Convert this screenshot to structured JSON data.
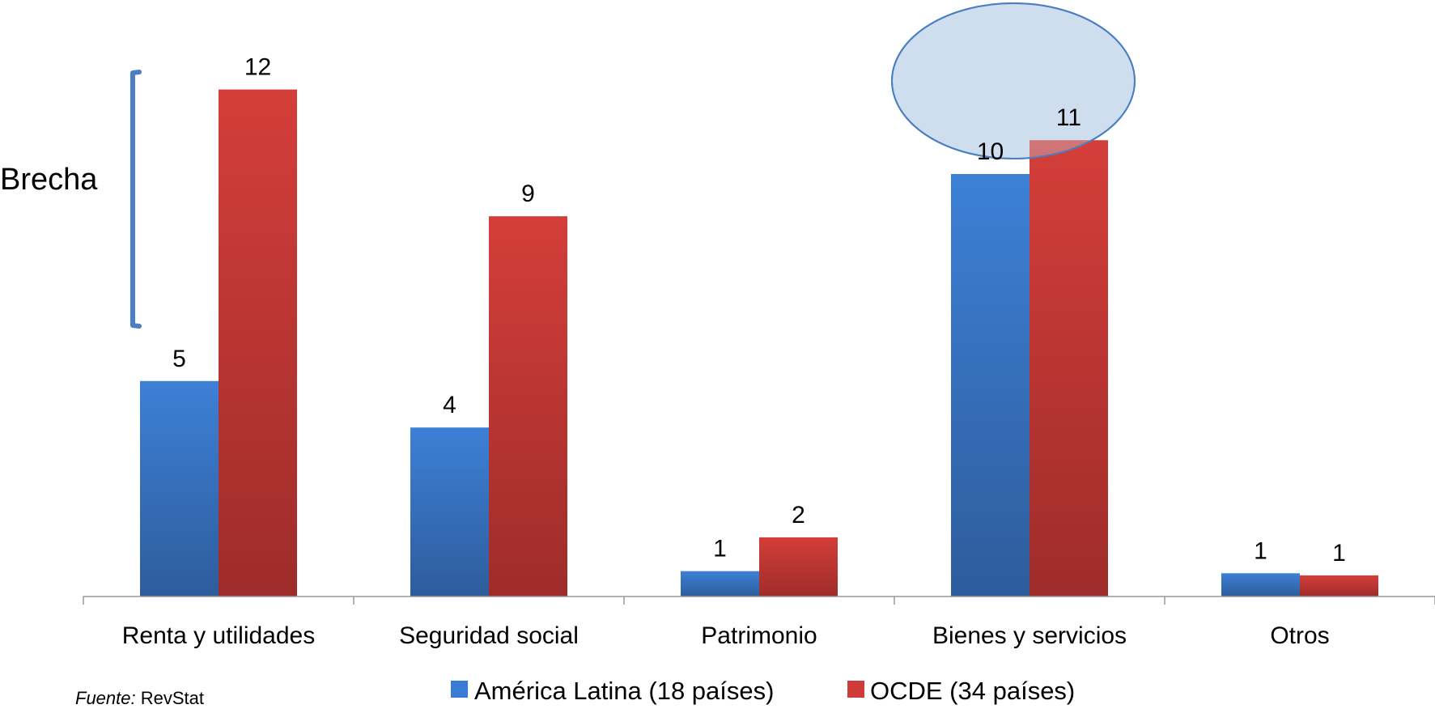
{
  "chart_data": {
    "type": "bar",
    "categories": [
      "Renta y utilidades",
      "Seguridad social",
      "Patrimonio",
      "Bienes y servicios",
      "Otros"
    ],
    "series": [
      {
        "name": "América Latina (18 países)",
        "values": [
          5,
          4,
          1,
          10,
          1
        ],
        "labels": [
          "5",
          "4",
          "1",
          "10",
          "1"
        ],
        "color": "#3a7bd5"
      },
      {
        "name": "OCDE (34 países)",
        "values": [
          12,
          9,
          2,
          11,
          1
        ],
        "labels": [
          "12",
          "9",
          "2",
          "11",
          "1"
        ],
        "color": "#cf3b38"
      }
    ],
    "display_values": {
      "América Latina (18 países)": [
        5.1,
        4.0,
        0.6,
        10.0,
        0.55
      ],
      "OCDE (34 países)": [
        12.0,
        9.0,
        1.4,
        10.8,
        0.5
      ]
    },
    "ylim": [
      0,
      13
    ],
    "title": "",
    "xlabel": "",
    "ylabel": "",
    "grid": false,
    "legend_position": "bottom-center",
    "annotations": {
      "gap_label": "Brecha",
      "highlight_category": "Bienes y servicios"
    }
  },
  "source": {
    "prefix": "Fuente:",
    "text": " RevStat"
  },
  "colors": {
    "latin_america": "#3a7bd5",
    "oecd": "#cf3b38",
    "bracket": "#4a7fc0",
    "ellipse_stroke": "#4a7fc0",
    "ellipse_fill": "#c9d9ee",
    "axis": "#999999"
  }
}
